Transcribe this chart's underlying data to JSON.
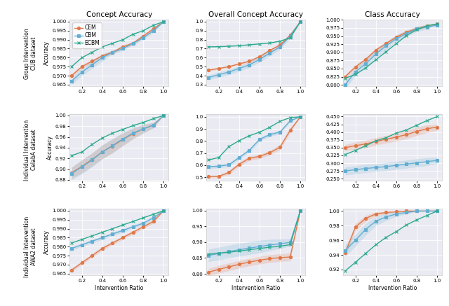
{
  "x": [
    0.1,
    0.2,
    0.3,
    0.4,
    0.5,
    0.6,
    0.7,
    0.8,
    0.9,
    1.0
  ],
  "col_titles": [
    "Concept Accuracy",
    "Overall Concept Accuracy",
    "Class Accuracy"
  ],
  "row_labels": [
    "Group Intervention\nCUB dataset",
    "Individual Intervention\nCelabA dataset",
    "Individual Intervention\nAWA2 dataset"
  ],
  "xlabel": "Intervention Ratio",
  "ylabel": "Accuracy",
  "legend_labels": [
    "CEM",
    "CBM",
    "ECBM"
  ],
  "colors": {
    "CEM": "#e07848",
    "CBM": "#62aed2",
    "ECBM": "#2baa8e"
  },
  "markers": {
    "CEM": "o",
    "CBM": "s",
    "ECBM": "x"
  },
  "r0c0": {
    "CEM_mean": [
      0.97,
      0.975,
      0.978,
      0.981,
      0.983,
      0.986,
      0.988,
      0.992,
      0.996,
      1.0
    ],
    "CEM_std": [
      0.001,
      0.001,
      0.001,
      0.001,
      0.001,
      0.001,
      0.001,
      0.001,
      0.001,
      0.0
    ],
    "CBM_mean": [
      0.967,
      0.972,
      0.976,
      0.98,
      0.983,
      0.985,
      0.988,
      0.991,
      0.995,
      1.0
    ],
    "CBM_std": [
      0.002,
      0.002,
      0.002,
      0.002,
      0.001,
      0.001,
      0.001,
      0.001,
      0.001,
      0.0
    ],
    "ECBM_mean": [
      0.975,
      0.98,
      0.983,
      0.986,
      0.988,
      0.99,
      0.993,
      0.995,
      0.998,
      1.0
    ],
    "ECBM_std": [
      0.0,
      0.0,
      0.0,
      0.0,
      0.0,
      0.0,
      0.0,
      0.0,
      0.0,
      0.0
    ],
    "ylim": [
      0.964,
      1.001
    ],
    "yticks": [
      0.965,
      0.97,
      0.975,
      0.98,
      0.985,
      0.99,
      0.995,
      1.0
    ]
  },
  "r0c1": {
    "CEM_mean": [
      0.46,
      0.48,
      0.5,
      0.53,
      0.56,
      0.61,
      0.68,
      0.74,
      0.85,
      1.0
    ],
    "CEM_std": [
      0.01,
      0.012,
      0.013,
      0.013,
      0.016,
      0.016,
      0.016,
      0.016,
      0.016,
      0.0
    ],
    "CBM_mean": [
      0.38,
      0.41,
      0.44,
      0.48,
      0.52,
      0.58,
      0.65,
      0.72,
      0.84,
      1.0
    ],
    "CBM_std": [
      0.025,
      0.03,
      0.03,
      0.03,
      0.03,
      0.03,
      0.03,
      0.03,
      0.025,
      0.0
    ],
    "ECBM_mean": [
      0.72,
      0.722,
      0.727,
      0.733,
      0.743,
      0.753,
      0.763,
      0.783,
      0.82,
      1.0
    ],
    "ECBM_std": [
      0.003,
      0.003,
      0.003,
      0.003,
      0.003,
      0.003,
      0.003,
      0.003,
      0.003,
      0.0
    ],
    "ylim": [
      0.28,
      1.02
    ],
    "yticks": [
      0.3,
      0.4,
      0.5,
      0.6,
      0.7,
      0.8,
      0.9,
      1.0
    ]
  },
  "r0c2": {
    "CEM_mean": [
      0.825,
      0.855,
      0.878,
      0.907,
      0.927,
      0.947,
      0.962,
      0.973,
      0.981,
      0.987
    ],
    "CEM_std": [
      0.006,
      0.006,
      0.006,
      0.006,
      0.006,
      0.006,
      0.006,
      0.006,
      0.006,
      0.0
    ],
    "CBM_mean": [
      0.8,
      0.84,
      0.865,
      0.895,
      0.92,
      0.942,
      0.958,
      0.972,
      0.978,
      0.984
    ],
    "CBM_std": [
      0.012,
      0.012,
      0.012,
      0.012,
      0.012,
      0.01,
      0.01,
      0.008,
      0.006,
      0.0
    ],
    "ECBM_mean": [
      0.82,
      0.832,
      0.852,
      0.877,
      0.902,
      0.927,
      0.952,
      0.97,
      0.982,
      0.988
    ],
    "ECBM_std": [
      0.0,
      0.0,
      0.0,
      0.0,
      0.0,
      0.0,
      0.0,
      0.0,
      0.0,
      0.0
    ],
    "ylim": [
      0.795,
      1.0
    ],
    "yticks": [
      0.8,
      0.825,
      0.85,
      0.875,
      0.9,
      0.925,
      0.95,
      0.975,
      1.0
    ]
  },
  "r1c0": {
    "CEM_mean": [
      0.893,
      0.905,
      0.918,
      0.932,
      0.943,
      0.955,
      0.966,
      0.975,
      0.982,
      1.0
    ],
    "CEM_std": [
      0.01,
      0.012,
      0.012,
      0.013,
      0.013,
      0.012,
      0.01,
      0.008,
      0.005,
      0.0
    ],
    "CBM_mean": [
      0.892,
      0.904,
      0.917,
      0.932,
      0.944,
      0.956,
      0.967,
      0.975,
      0.982,
      1.0
    ],
    "CBM_std": [
      0.012,
      0.013,
      0.013,
      0.013,
      0.013,
      0.012,
      0.01,
      0.008,
      0.005,
      0.0
    ],
    "ECBM_mean": [
      0.925,
      0.932,
      0.946,
      0.958,
      0.967,
      0.974,
      0.981,
      0.987,
      0.994,
      1.0
    ],
    "ECBM_std": [
      0.0,
      0.0,
      0.0,
      0.0,
      0.0,
      0.0,
      0.0,
      0.0,
      0.0,
      0.0
    ],
    "ylim": [
      0.878,
      1.002
    ],
    "yticks": [
      0.88,
      0.9,
      0.92,
      0.94,
      0.96,
      0.98,
      1.0
    ]
  },
  "r1c1": {
    "CEM_mean": [
      0.505,
      0.507,
      0.54,
      0.607,
      0.657,
      0.673,
      0.703,
      0.748,
      0.888,
      1.0
    ],
    "CEM_std": [
      0.012,
      0.012,
      0.015,
      0.018,
      0.018,
      0.018,
      0.018,
      0.022,
      0.022,
      0.0
    ],
    "CBM_mean": [
      0.587,
      0.592,
      0.603,
      0.663,
      0.723,
      0.813,
      0.853,
      0.873,
      0.967,
      1.0
    ],
    "CBM_std": [
      0.015,
      0.015,
      0.015,
      0.015,
      0.015,
      0.015,
      0.015,
      0.015,
      0.01,
      0.0
    ],
    "ECBM_mean": [
      0.643,
      0.663,
      0.753,
      0.803,
      0.843,
      0.873,
      0.913,
      0.963,
      0.993,
      1.0
    ],
    "ECBM_std": [
      0.0,
      0.0,
      0.0,
      0.0,
      0.0,
      0.0,
      0.0,
      0.0,
      0.0,
      0.0
    ],
    "ylim": [
      0.47,
      1.02
    ],
    "yticks": [
      0.5,
      0.6,
      0.7,
      0.8,
      0.9,
      1.0
    ]
  },
  "r1c2": {
    "CEM_mean": [
      0.35,
      0.356,
      0.362,
      0.37,
      0.377,
      0.384,
      0.392,
      0.402,
      0.411,
      0.416
    ],
    "CEM_std": [
      0.01,
      0.012,
      0.012,
      0.012,
      0.012,
      0.013,
      0.013,
      0.013,
      0.013,
      0.01
    ],
    "CBM_mean": [
      0.275,
      0.279,
      0.283,
      0.286,
      0.289,
      0.293,
      0.297,
      0.301,
      0.305,
      0.309
    ],
    "CBM_std": [
      0.013,
      0.013,
      0.013,
      0.013,
      0.013,
      0.013,
      0.013,
      0.013,
      0.013,
      0.01
    ],
    "ECBM_mean": [
      0.328,
      0.341,
      0.356,
      0.372,
      0.382,
      0.397,
      0.407,
      0.422,
      0.437,
      0.45
    ],
    "ECBM_std": [
      0.0,
      0.0,
      0.0,
      0.0,
      0.0,
      0.0,
      0.0,
      0.0,
      0.0,
      0.0
    ],
    "ylim": [
      0.243,
      0.457
    ],
    "yticks": [
      0.25,
      0.275,
      0.3,
      0.325,
      0.35,
      0.375,
      0.4,
      0.425,
      0.45
    ]
  },
  "r2c0": {
    "CEM_mean": [
      0.967,
      0.971,
      0.975,
      0.979,
      0.982,
      0.985,
      0.988,
      0.991,
      0.994,
      1.0
    ],
    "CEM_std": [
      0.001,
      0.001,
      0.001,
      0.001,
      0.001,
      0.001,
      0.001,
      0.001,
      0.001,
      0.0
    ],
    "CBM_mean": [
      0.979,
      0.981,
      0.983,
      0.985,
      0.987,
      0.989,
      0.991,
      0.993,
      0.996,
      1.0
    ],
    "CBM_std": [
      0.001,
      0.001,
      0.001,
      0.001,
      0.001,
      0.001,
      0.001,
      0.001,
      0.001,
      0.0
    ],
    "ECBM_mean": [
      0.982,
      0.984,
      0.986,
      0.988,
      0.99,
      0.992,
      0.994,
      0.996,
      0.998,
      1.0
    ],
    "ECBM_std": [
      0.0,
      0.0,
      0.0,
      0.0,
      0.0,
      0.0,
      0.0,
      0.0,
      0.0,
      0.0
    ],
    "ylim": [
      0.964,
      1.001
    ],
    "yticks": [
      0.965,
      0.97,
      0.975,
      0.98,
      0.985,
      0.99,
      0.995,
      1.0
    ]
  },
  "r2c1": {
    "CEM_mean": [
      0.805,
      0.814,
      0.822,
      0.83,
      0.837,
      0.843,
      0.848,
      0.851,
      0.853,
      1.0
    ],
    "CEM_std": [
      0.012,
      0.012,
      0.012,
      0.012,
      0.012,
      0.012,
      0.012,
      0.012,
      0.012,
      0.0
    ],
    "CBM_mean": [
      0.858,
      0.864,
      0.87,
      0.876,
      0.881,
      0.886,
      0.891,
      0.895,
      0.899,
      1.0
    ],
    "CBM_std": [
      0.02,
      0.02,
      0.02,
      0.02,
      0.02,
      0.02,
      0.018,
      0.015,
      0.012,
      0.0
    ],
    "ECBM_mean": [
      0.862,
      0.865,
      0.868,
      0.872,
      0.876,
      0.88,
      0.884,
      0.887,
      0.892,
      1.0
    ],
    "ECBM_std": [
      0.0,
      0.0,
      0.0,
      0.0,
      0.0,
      0.0,
      0.0,
      0.0,
      0.0,
      0.0
    ],
    "ylim": [
      0.795,
      1.005
    ],
    "yticks": [
      0.8,
      0.85,
      0.9,
      0.95,
      1.0
    ]
  },
  "r2c2": {
    "CEM_mean": [
      0.943,
      0.978,
      0.99,
      0.996,
      0.998,
      0.999,
      1.0,
      1.0,
      1.0,
      1.0
    ],
    "CEM_std": [
      0.005,
      0.005,
      0.004,
      0.003,
      0.002,
      0.001,
      0.001,
      0.0,
      0.0,
      0.0
    ],
    "CBM_mean": [
      0.946,
      0.96,
      0.975,
      0.986,
      0.992,
      0.996,
      0.998,
      1.0,
      1.0,
      1.0
    ],
    "CBM_std": [
      0.008,
      0.008,
      0.008,
      0.006,
      0.005,
      0.003,
      0.002,
      0.001,
      0.0,
      0.0
    ],
    "ECBM_mean": [
      0.918,
      0.93,
      0.942,
      0.954,
      0.964,
      0.972,
      0.981,
      0.988,
      0.994,
      1.0
    ],
    "ECBM_std": [
      0.0,
      0.0,
      0.0,
      0.0,
      0.0,
      0.0,
      0.0,
      0.0,
      0.0,
      0.0
    ],
    "ylim": [
      0.912,
      1.003
    ],
    "yticks": [
      0.92,
      0.94,
      0.96,
      0.98,
      1.0
    ]
  }
}
